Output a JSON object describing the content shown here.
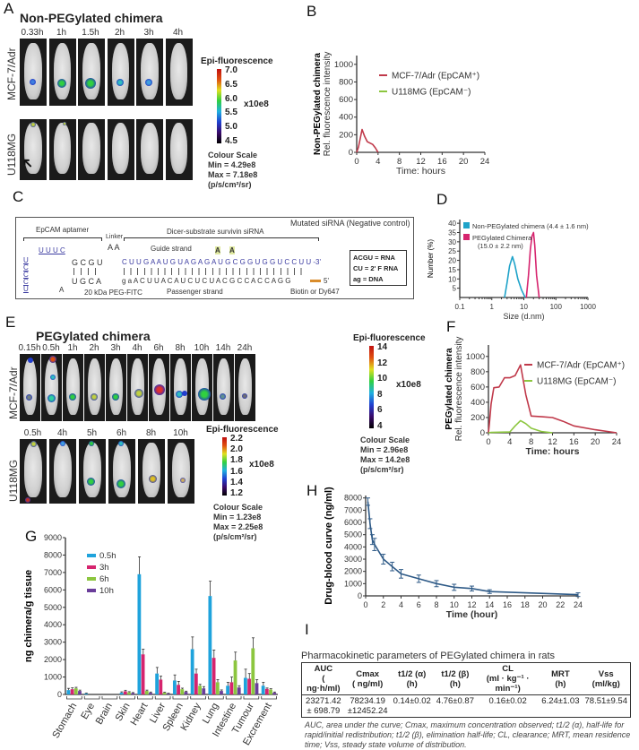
{
  "panel_a": {
    "label": "A",
    "title": "Non-PEGylated chimera",
    "timepoints": [
      "0.33h",
      "1h",
      "1.5h",
      "2h",
      "3h",
      "4h"
    ],
    "rows": [
      "MCF-7/Adr",
      "U118MG"
    ],
    "colorbar": {
      "title": "Epi-fluorescence",
      "ticks": [
        "7.0",
        "6.5",
        "6.0",
        "5.5",
        "5.0",
        "4.5"
      ],
      "unit": "x10e8",
      "scale_title": "Colour Scale",
      "min": "Min = 4.29e8",
      "max": "Max = 7.18e8",
      "units": "(p/s/cm²/sr)"
    }
  },
  "panel_c": {
    "label": "C",
    "aptamer": "EpCAM aptamer",
    "linker": "Linker",
    "sirna": "Dicer-substrate survivin siRNA",
    "mutated": "Mutated siRNA (Negative control)",
    "guide": "Guide strand",
    "passenger": "Passenger strand",
    "peg": "20 kDa PEG-FITC",
    "biotin": "Biotin or Dy647",
    "guide_seq": "C U U G A A U G U A G A G A U G C G G U G G U C C U U -3'",
    "passenger_seq": "g a A C U U A C A U C U C U A C G C C A C C A G G",
    "passenger_end": "5'",
    "mut1": "A",
    "mut2": "A",
    "loop_top": "U U U C",
    "stem_top": "G C G U",
    "stem_bot": "U G C A",
    "loop_left": "U C C C U",
    "loop_a": "A",
    "linker_seq": "A A",
    "legend": [
      "ACGU = RNA",
      "CU = 2' F RNA",
      "ag = DNA"
    ]
  },
  "panel_e": {
    "label": "E",
    "title": "PEGylated chimera",
    "timepoints_mcf": [
      "0.15h",
      "0.5h",
      "1h",
      "2h",
      "3h",
      "4h",
      "6h",
      "8h",
      "10h",
      "14h",
      "24h"
    ],
    "timepoints_u118": [
      "0.5h",
      "4h",
      "5h",
      "6h",
      "8h",
      "10h"
    ],
    "rows": [
      "MCF-7/Adr",
      "U118MG"
    ],
    "colorbar1": {
      "title": "Epi-fluorescence",
      "ticks": [
        "14",
        "12",
        "10",
        "8",
        "6",
        "4"
      ],
      "unit": "x10e8",
      "scale_title": "Colour Scale",
      "min": "Min = 2.96e8",
      "max": "Max = 14.2e8",
      "units": "(p/s/cm²/sr)"
    },
    "colorbar2": {
      "title": "Epi-fluorescence",
      "ticks": [
        "2.2",
        "2.0",
        "1.8",
        "1.6",
        "1.4",
        "1.2"
      ],
      "unit": "x10e8",
      "scale_title": "Colour Scale",
      "min": "Min = 1.23e8",
      "max": "Max = 2.25e8",
      "units": "(p/s/cm²/sr)"
    }
  },
  "panel_i": {
    "label": "I",
    "title": "Pharmacokinetic parameters of PEGylated chimera in rats",
    "headers": [
      [
        "AUC",
        "( ng·h/ml)"
      ],
      [
        "Cmax",
        "( ng/ml)"
      ],
      [
        "t1/2 (α)",
        "(h)"
      ],
      [
        "t1/2 (β)",
        "(h)"
      ],
      [
        "CL",
        "(ml · kg⁻¹ · min⁻¹)"
      ],
      [
        "MRT",
        "(h)"
      ],
      [
        "Vss",
        "(ml/kg)"
      ]
    ],
    "values": [
      [
        "23271.42",
        "± 698.79"
      ],
      [
        "78234.19",
        "±12452.24"
      ],
      [
        "0.14±0.02",
        ""
      ],
      [
        "4.76±0.87",
        ""
      ],
      [
        "0.16±0.02",
        ""
      ],
      [
        "6.24±1.03",
        ""
      ],
      [
        "78.51±9.54",
        ""
      ]
    ],
    "footnote": "AUC,  area under the curve; Cmax, maximum concentration observed; t1/2 (α), half-life for rapid/initial redistribution; t1/2 (β), elimination half-life; CL, clearance; MRT, mean residence time; Vss, steady state volume of distribution."
  },
  "chart_data": [
    {
      "id": "B",
      "label": "B",
      "type": "line",
      "ylabel_bold": "Non-PEGylated chimera",
      "ylabel": "Rel. fluorescence intensity",
      "xlabel": "Time: hours",
      "xlim": [
        0,
        24
      ],
      "ylim": [
        0,
        1100
      ],
      "xticks": [
        0,
        4,
        8,
        12,
        16,
        20,
        24
      ],
      "yticks": [
        0,
        200,
        400,
        600,
        800,
        1000
      ],
      "legend": "top-right",
      "series": [
        {
          "name": "MCF-7/Adr (EpCAM⁺)",
          "color": "#c0394a",
          "x": [
            0,
            0.33,
            1,
            1.5,
            2,
            3,
            3.5,
            4
          ],
          "y": [
            0,
            60,
            260,
            180,
            120,
            90,
            50,
            0
          ]
        },
        {
          "name": "U118MG (EpCAM⁻)",
          "color": "#8cc63f",
          "x": [],
          "y": []
        }
      ]
    },
    {
      "id": "D",
      "label": "D",
      "type": "line",
      "xlabel": "Size (d.nm)",
      "ylabel": "Number (%)",
      "xscale": "log",
      "xlim": [
        0.1,
        1000
      ],
      "ylim": [
        0,
        42
      ],
      "xticks": [
        0.1,
        1,
        10,
        100,
        1000
      ],
      "xticklabels": [
        "0.1",
        "1",
        "10",
        "100",
        "1000"
      ],
      "yticks": [
        5,
        10,
        15,
        20,
        25,
        30,
        35,
        40
      ],
      "legend": "top-left",
      "series": [
        {
          "name": "Non-PEGylated chimera (4.4 ± 1.6 nm)",
          "color": "#1fa3c9",
          "x": [
            2.5,
            3,
            3.6,
            4.4,
            5.2,
            6.5,
            8.5,
            11
          ],
          "y": [
            0,
            8,
            17,
            22,
            18,
            10,
            4,
            0
          ]
        },
        {
          "name": "PEGylated Chimera (15.0 ± 2.2 nm)",
          "color": "#d6246e",
          "x": [
            12,
            14,
            16,
            18,
            20,
            22,
            25,
            30
          ],
          "y": [
            0,
            12,
            26,
            33,
            35,
            28,
            12,
            0
          ]
        }
      ]
    },
    {
      "id": "F",
      "label": "F",
      "type": "line",
      "ylabel_bold": "PEGylated chimera",
      "ylabel": "Rel. fluorescence intensity",
      "xlabel": "Time: hours",
      "xlim": [
        0,
        24
      ],
      "ylim": [
        0,
        1150
      ],
      "xticks": [
        0,
        4,
        8,
        12,
        16,
        20,
        24
      ],
      "yticks": [
        0,
        200,
        400,
        600,
        800,
        1000
      ],
      "legend": "top-right",
      "series": [
        {
          "name": "MCF-7/Adr (EpCAM⁺)",
          "color": "#c0394a",
          "x": [
            0,
            0.15,
            0.5,
            1,
            2,
            3,
            4,
            5,
            6,
            7,
            8,
            10,
            12,
            14,
            16,
            20,
            24
          ],
          "y": [
            0,
            100,
            380,
            590,
            600,
            720,
            720,
            750,
            890,
            500,
            220,
            210,
            200,
            150,
            90,
            40,
            0
          ]
        },
        {
          "name": "U118MG (EpCAM⁻)",
          "color": "#8cc63f",
          "x": [
            0,
            0.5,
            4,
            5,
            6,
            7,
            8,
            10,
            12
          ],
          "y": [
            0,
            5,
            10,
            90,
            160,
            120,
            60,
            15,
            0
          ]
        }
      ]
    },
    {
      "id": "G",
      "label": "G",
      "type": "bar",
      "ylabel": "ng chimera/g tissue",
      "ylim": [
        0,
        9000
      ],
      "yticks": [
        0,
        1000,
        2000,
        3000,
        4000,
        5000,
        6000,
        7000,
        8000,
        9000
      ],
      "legend": "top-left",
      "categories": [
        "Stomach",
        "Eye",
        "Brain",
        "Skin",
        "Heart",
        "Liver",
        "Spleen",
        "Kidney",
        "Lung",
        "Intestine",
        "Tumour",
        "Excrement"
      ],
      "series": [
        {
          "name": "0.5h",
          "color": "#1fa3dc",
          "values": [
            250,
            50,
            0,
            100,
            6900,
            1200,
            800,
            2600,
            5650,
            500,
            950,
            500
          ],
          "errors": [
            100,
            30,
            0,
            50,
            1000,
            350,
            320,
            700,
            850,
            200,
            500,
            200
          ]
        },
        {
          "name": "3h",
          "color": "#d6246e",
          "values": [
            300,
            0,
            0,
            180,
            2300,
            850,
            550,
            1200,
            2100,
            700,
            900,
            320
          ],
          "errors": [
            80,
            0,
            0,
            60,
            300,
            200,
            200,
            250,
            450,
            300,
            300,
            50
          ]
        },
        {
          "name": "6h",
          "color": "#8cc63f",
          "values": [
            350,
            0,
            0,
            120,
            200,
            100,
            300,
            500,
            700,
            1950,
            2650,
            280
          ],
          "errors": [
            60,
            0,
            0,
            40,
            50,
            30,
            60,
            80,
            150,
            480,
            600,
            50
          ]
        },
        {
          "name": "10h",
          "color": "#6a3d9a",
          "values": [
            200,
            0,
            0,
            80,
            100,
            50,
            150,
            350,
            200,
            400,
            650,
            100
          ],
          "errors": [
            50,
            0,
            0,
            30,
            40,
            20,
            40,
            100,
            60,
            100,
            200,
            40
          ]
        }
      ]
    },
    {
      "id": "H",
      "label": "H",
      "type": "line",
      "ylabel": "Drug-blood curve (ng/ml)",
      "xlabel": "Time (hour)",
      "xlim": [
        0,
        24
      ],
      "ylim": [
        0,
        8200
      ],
      "xticks": [
        0,
        2,
        4,
        6,
        8,
        10,
        12,
        14,
        16,
        18,
        20,
        22,
        24
      ],
      "yticks": [
        0,
        1000,
        2000,
        3000,
        4000,
        5000,
        6000,
        7000,
        8000
      ],
      "series": [
        {
          "color": "#2e5a87",
          "x": [
            0.25,
            0.5,
            0.75,
            1,
            2,
            3,
            4,
            6,
            8,
            10,
            12,
            14,
            24
          ],
          "y": [
            7700,
            5900,
            4600,
            4200,
            3000,
            2400,
            1800,
            1400,
            1000,
            700,
            600,
            350,
            100
          ],
          "errors": [
            300,
            400,
            400,
            500,
            400,
            350,
            350,
            300,
            250,
            250,
            200,
            150,
            150
          ]
        }
      ]
    }
  ]
}
